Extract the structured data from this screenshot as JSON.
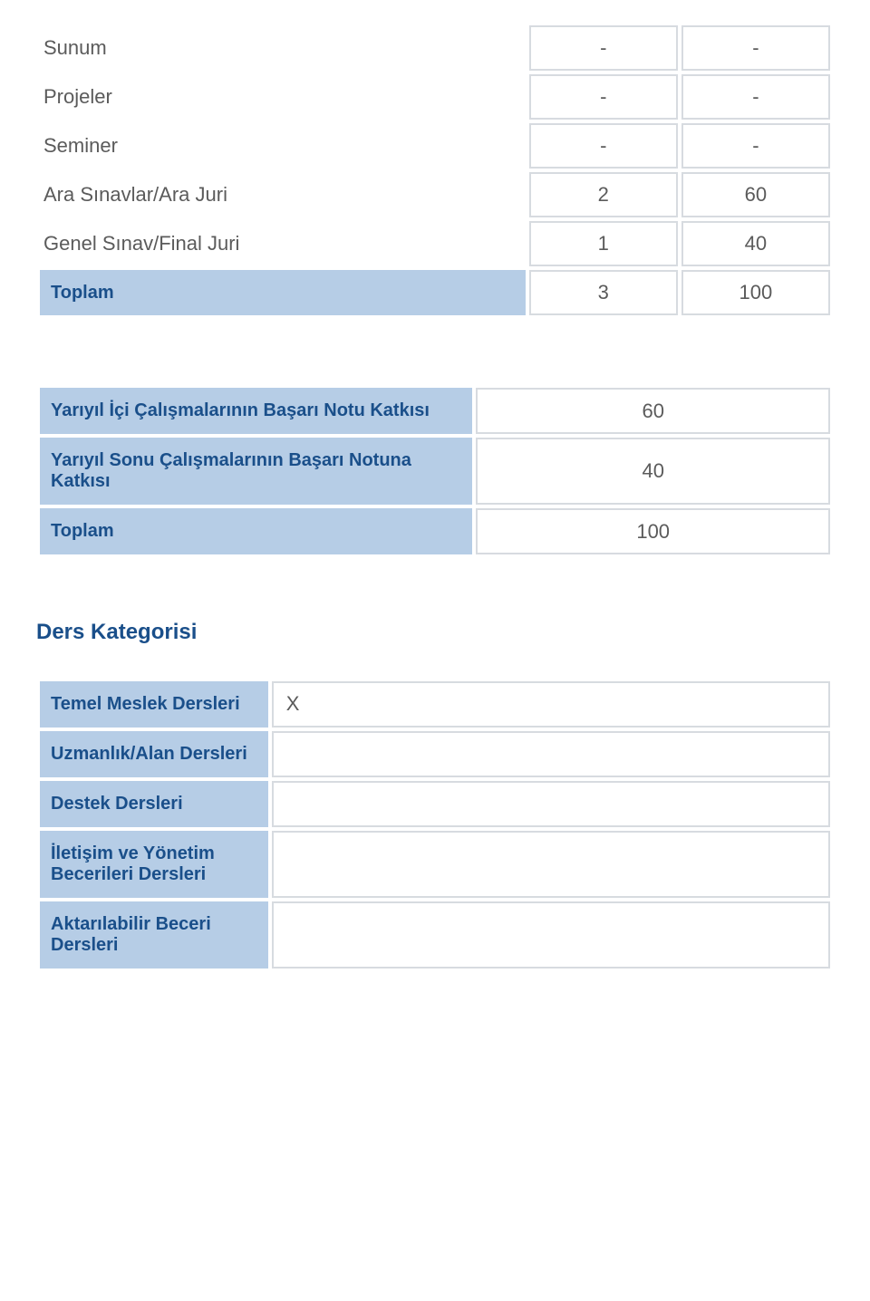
{
  "assessment": {
    "rows": [
      {
        "label": "Sunum",
        "count": "-",
        "pct": "-"
      },
      {
        "label": "Projeler",
        "count": "-",
        "pct": "-"
      },
      {
        "label": "Seminer",
        "count": "-",
        "pct": "-"
      },
      {
        "label": "Ara Sınavlar/Ara Juri",
        "count": "2",
        "pct": "60"
      },
      {
        "label": "Genel Sınav/Final Juri",
        "count": "1",
        "pct": "40"
      }
    ],
    "total_label": "Toplam",
    "total_count": "3",
    "total_pct": "100"
  },
  "contribution": {
    "row1_label": "Yarıyıl İçi Çalışmalarının Başarı Notu Katkısı",
    "row1_value": "60",
    "row2_label": "Yarıyıl Sonu Çalışmalarının Başarı Notuna Katkısı",
    "row2_value": "40",
    "total_label": "Toplam",
    "total_value": "100"
  },
  "category": {
    "title": "Ders Kategorisi",
    "rows": [
      {
        "label": "Temel Meslek Dersleri",
        "value": "X"
      },
      {
        "label": "Uzmanlık/Alan Dersleri",
        "value": ""
      },
      {
        "label": "Destek Dersleri",
        "value": ""
      },
      {
        "label": "İletişim ve Yönetim Becerileri Dersleri",
        "value": ""
      },
      {
        "label": "Aktarılabilir Beceri Dersleri",
        "value": ""
      }
    ]
  },
  "colors": {
    "header_bg": "#b6cde6",
    "header_text": "#1a4f8a",
    "cell_border": "#d7dbe0",
    "body_text": "#5b5b5b",
    "background": "#ffffff"
  }
}
